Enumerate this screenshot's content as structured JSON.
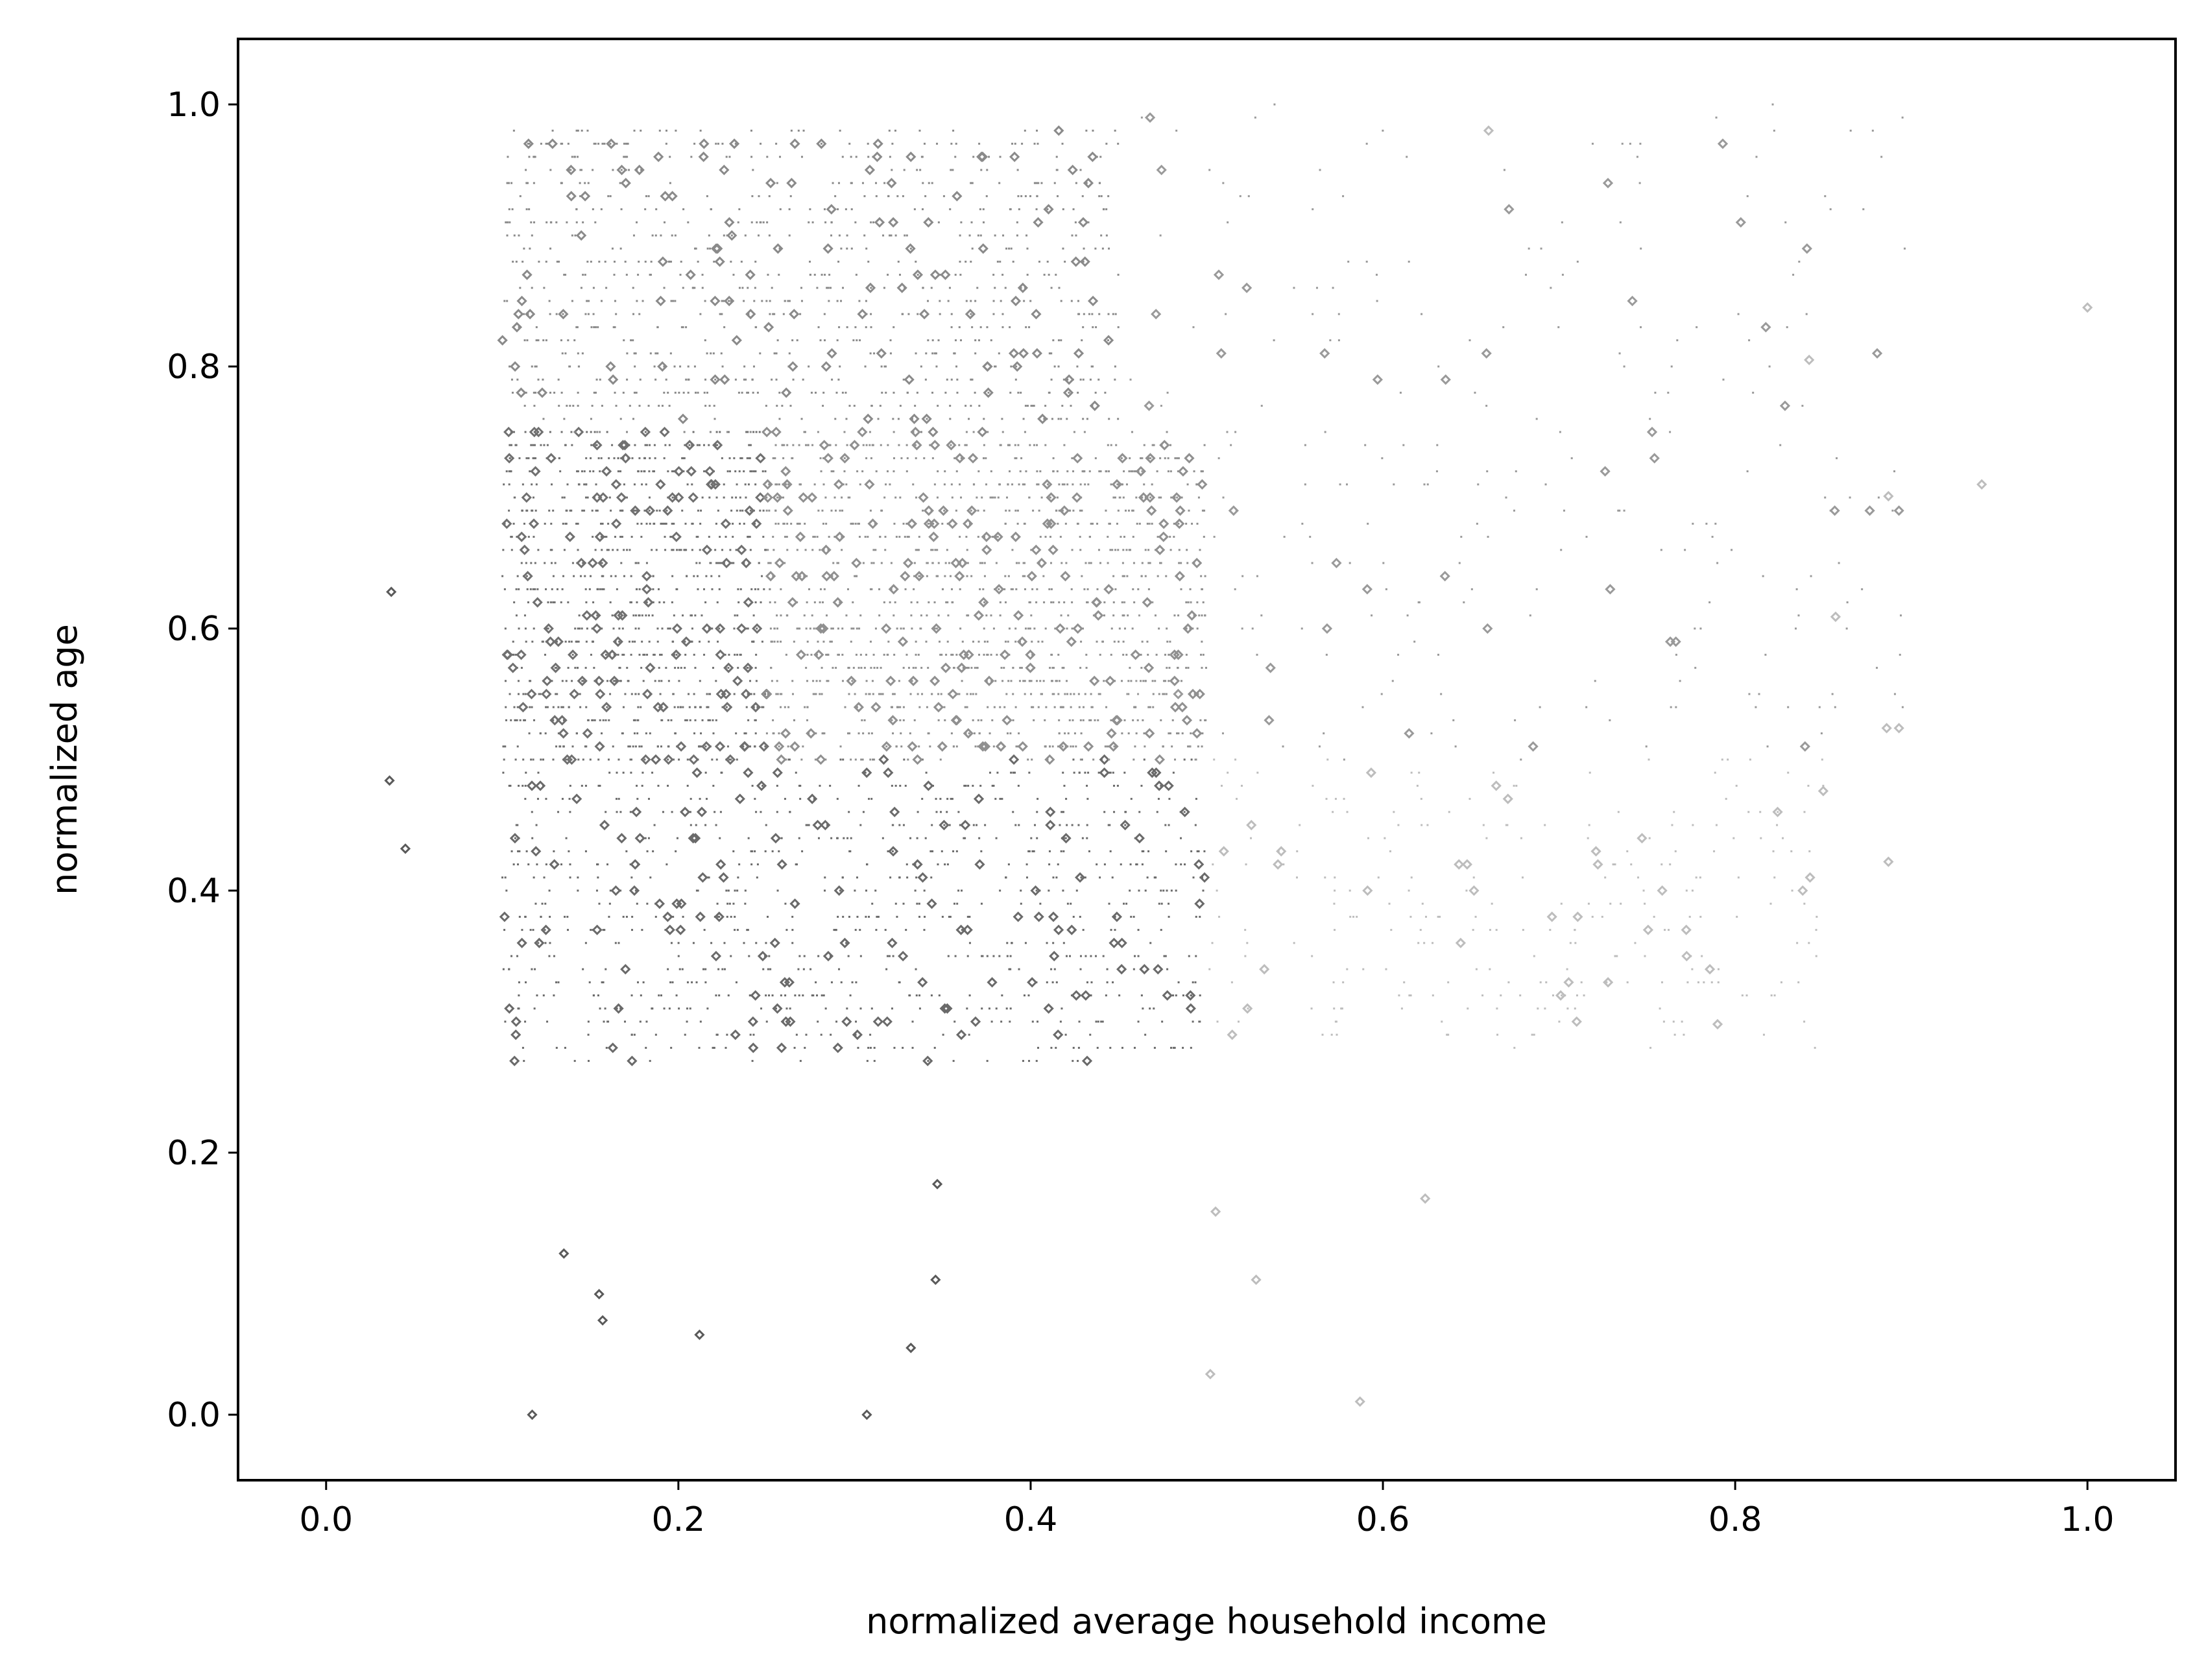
{
  "chart_data": {
    "type": "scatter",
    "title": "",
    "xlabel": "normalized average household income",
    "ylabel": "normalized age",
    "xlim": [
      -0.05,
      1.05
    ],
    "ylim": [
      -0.05,
      1.05
    ],
    "xticks": [
      {
        "value": 0.0,
        "label": "0.0"
      },
      {
        "value": 0.2,
        "label": "0.2"
      },
      {
        "value": 0.4,
        "label": "0.4"
      },
      {
        "value": 0.6,
        "label": "0.6"
      },
      {
        "value": 0.8,
        "label": "0.8"
      },
      {
        "value": 1.0,
        "label": "1.0"
      }
    ],
    "yticks": [
      {
        "value": 0.0,
        "label": "0.0"
      },
      {
        "value": 0.2,
        "label": "0.2"
      },
      {
        "value": 0.4,
        "label": "0.4"
      },
      {
        "value": 0.6,
        "label": "0.6"
      },
      {
        "value": 0.8,
        "label": "0.8"
      },
      {
        "value": 1.0,
        "label": "1.0"
      }
    ],
    "grid": false,
    "legend": "none",
    "colors": {
      "dark_gray": "#5a5a5a",
      "mid_gray": "#8c8c8c",
      "light_gray": "#bdbdbd",
      "axes": "#000000"
    },
    "regions": [
      {
        "x": [
          0.1,
          0.25
        ],
        "y": [
          0.5,
          0.75
        ],
        "color": "#707070",
        "density": "high"
      },
      {
        "x": [
          0.1,
          0.5
        ],
        "y": [
          0.27,
          0.5
        ],
        "color": "#6a6a6a",
        "density": "high"
      },
      {
        "x": [
          0.25,
          0.5
        ],
        "y": [
          0.5,
          0.75
        ],
        "color": "#909090",
        "density": "very high"
      },
      {
        "x": [
          0.1,
          0.45
        ],
        "y": [
          0.75,
          0.98
        ],
        "color": "#8a8a8a",
        "density": "high"
      },
      {
        "x": [
          0.45,
          0.9
        ],
        "y": [
          0.5,
          1.0
        ],
        "color": "#9a9a9a",
        "density": "sparse"
      },
      {
        "x": [
          0.5,
          0.85
        ],
        "y": [
          0.28,
          0.5
        ],
        "color": "#bdbdbd",
        "density": "sparse"
      }
    ],
    "notable_points": [
      {
        "x": 0.117,
        "y": 0.0
      },
      {
        "x": 0.307,
        "y": 0.0
      },
      {
        "x": 0.135,
        "y": 0.123
      },
      {
        "x": 0.155,
        "y": 0.092
      },
      {
        "x": 0.157,
        "y": 0.072
      },
      {
        "x": 0.212,
        "y": 0.061
      },
      {
        "x": 0.332,
        "y": 0.051
      },
      {
        "x": 0.346,
        "y": 0.103
      },
      {
        "x": 0.347,
        "y": 0.176
      },
      {
        "x": 0.502,
        "y": 0.031
      },
      {
        "x": 0.505,
        "y": 0.155
      },
      {
        "x": 0.528,
        "y": 0.103
      },
      {
        "x": 0.036,
        "y": 0.484
      },
      {
        "x": 0.045,
        "y": 0.432
      },
      {
        "x": 0.037,
        "y": 0.628
      },
      {
        "x": 0.79,
        "y": 0.298
      },
      {
        "x": 0.842,
        "y": 0.805
      },
      {
        "x": 0.857,
        "y": 0.609
      },
      {
        "x": 0.85,
        "y": 0.476
      },
      {
        "x": 0.887,
        "y": 0.701
      },
      {
        "x": 0.886,
        "y": 0.524
      },
      {
        "x": 0.893,
        "y": 0.524
      },
      {
        "x": 0.887,
        "y": 0.422
      },
      {
        "x": 0.94,
        "y": 0.71
      },
      {
        "x": 0.66,
        "y": 0.98
      },
      {
        "x": 1.0,
        "y": 0.845
      },
      {
        "x": 0.587,
        "y": 0.01
      },
      {
        "x": 0.624,
        "y": 0.165
      }
    ]
  }
}
